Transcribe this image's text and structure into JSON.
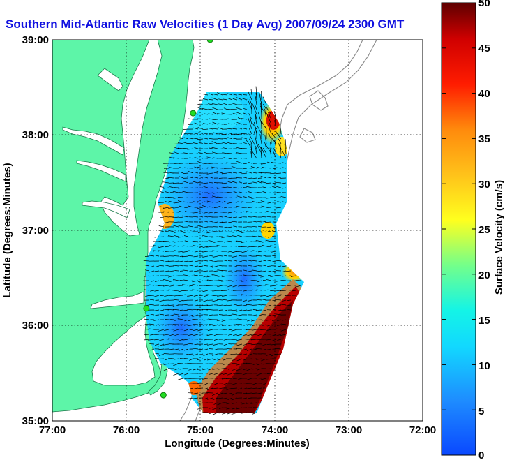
{
  "title": "Southern Mid-Atlantic Raw Velocities (1 Day Avg) 2007/09/24 2300 GMT",
  "x_axis": {
    "label": "Longitude (Degrees:Minutes)",
    "ticks": [
      "77:00",
      "76:00",
      "75:00",
      "74:00",
      "73:00",
      "72:00"
    ]
  },
  "y_axis": {
    "label": "Latitude (Degrees:Minutes)",
    "ticks": [
      "39:00",
      "38:00",
      "37:00",
      "36:00",
      "35:00"
    ]
  },
  "colorbar": {
    "label": "Surface Velocity (cm/s)",
    "min": 0,
    "max": 50,
    "ticks": [
      "0",
      "5",
      "10",
      "15",
      "20",
      "25",
      "30",
      "35",
      "40",
      "45",
      "50"
    ]
  },
  "colors": {
    "land": "#5df5a8",
    "ocean": "#ffffff",
    "title": "#1010e0",
    "station": "#22dd22",
    "bathymetry": "#888888"
  },
  "stations": [
    {
      "lon": -74.87,
      "lat": 39.0
    },
    {
      "lon": -75.1,
      "lat": 38.23
    },
    {
      "lon": -75.73,
      "lat": 36.18
    },
    {
      "lon": -75.5,
      "lat": 35.27
    }
  ]
}
